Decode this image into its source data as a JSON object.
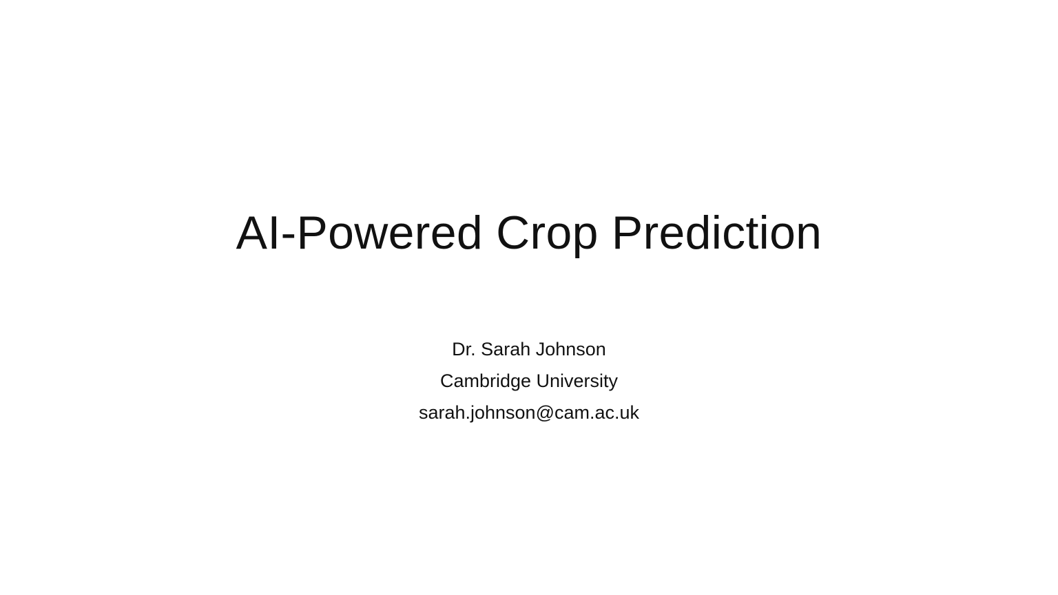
{
  "slide": {
    "title": "AI-Powered Crop Prediction",
    "subtitle": {
      "author": "Dr. Sarah Johnson",
      "institution": "Cambridge University",
      "email": "sarah.johnson@cam.ac.uk"
    }
  }
}
